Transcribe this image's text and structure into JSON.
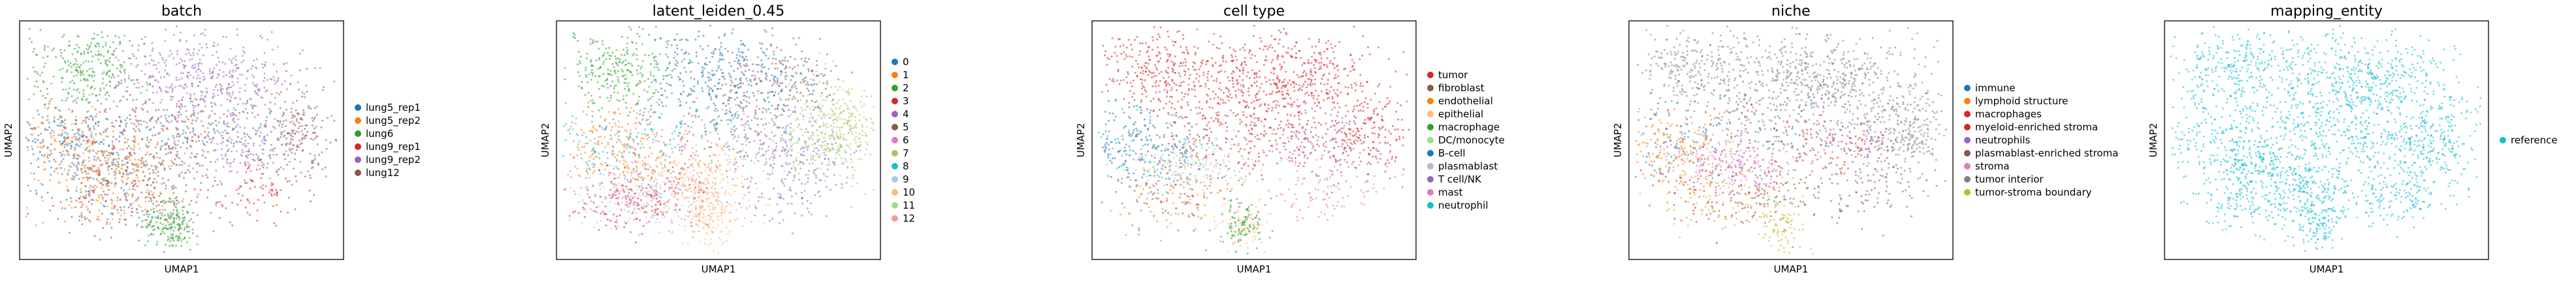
{
  "chart_data": [
    {
      "type": "scatter",
      "title": "batch",
      "xlabel": "UMAP1",
      "ylabel": "UMAP2",
      "legend_position": "right",
      "grid": false,
      "ticks": false,
      "series": [
        {
          "name": "lung5_rep1",
          "color": "#1f77b4"
        },
        {
          "name": "lung5_rep2",
          "color": "#ff7f0e"
        },
        {
          "name": "lung6",
          "color": "#2ca02c"
        },
        {
          "name": "lung9_rep1",
          "color": "#d62728"
        },
        {
          "name": "lung9_rep2",
          "color": "#9467bd"
        },
        {
          "name": "lung12",
          "color": "#8c564b"
        }
      ]
    },
    {
      "type": "scatter",
      "title": "latent_leiden_0.45",
      "xlabel": "UMAP1",
      "ylabel": "UMAP2",
      "legend_position": "right",
      "grid": false,
      "ticks": false,
      "series": [
        {
          "name": "0",
          "color": "#1f77b4"
        },
        {
          "name": "1",
          "color": "#ff7f0e"
        },
        {
          "name": "2",
          "color": "#2ca02c"
        },
        {
          "name": "3",
          "color": "#d62728"
        },
        {
          "name": "4",
          "color": "#9467bd"
        },
        {
          "name": "5",
          "color": "#8c564b"
        },
        {
          "name": "6",
          "color": "#e377c2"
        },
        {
          "name": "7",
          "color": "#b5bd61"
        },
        {
          "name": "8",
          "color": "#17becf"
        },
        {
          "name": "9",
          "color": "#aec7e8"
        },
        {
          "name": "10",
          "color": "#ffbb78"
        },
        {
          "name": "11",
          "color": "#98df8a"
        },
        {
          "name": "12",
          "color": "#ff9896"
        }
      ]
    },
    {
      "type": "scatter",
      "title": "cell type",
      "xlabel": "UMAP1",
      "ylabel": "UMAP2",
      "legend_position": "right",
      "grid": false,
      "ticks": false,
      "series": [
        {
          "name": "tumor",
          "color": "#d62728"
        },
        {
          "name": "fibroblast",
          "color": "#8c564b"
        },
        {
          "name": "endothelial",
          "color": "#ff7f0e"
        },
        {
          "name": "epithelial",
          "color": "#ffbb78"
        },
        {
          "name": "macrophage",
          "color": "#2ca02c"
        },
        {
          "name": "DC/monocyte",
          "color": "#98df8a"
        },
        {
          "name": "B-cell",
          "color": "#1f77b4"
        },
        {
          "name": "plasmablast",
          "color": "#c5b0d5"
        },
        {
          "name": "T cell/NK",
          "color": "#9467bd"
        },
        {
          "name": "mast",
          "color": "#e377c2"
        },
        {
          "name": "neutrophil",
          "color": "#17becf"
        }
      ]
    },
    {
      "type": "scatter",
      "title": "niche",
      "xlabel": "UMAP1",
      "ylabel": "UMAP2",
      "legend_position": "right",
      "grid": false,
      "ticks": false,
      "series": [
        {
          "name": "immune",
          "color": "#1f77b4"
        },
        {
          "name": "lymphoid structure",
          "color": "#ff7f0e"
        },
        {
          "name": "macrophages",
          "color": "#d62728"
        },
        {
          "name": "myeloid-enriched stroma",
          "color": "#d62728"
        },
        {
          "name": "neutrophils",
          "color": "#9467bd"
        },
        {
          "name": "plasmablast-enriched stroma",
          "color": "#8c564b"
        },
        {
          "name": "stroma",
          "color": "#e377c2"
        },
        {
          "name": "tumor interior",
          "color": "#7f7f7f"
        },
        {
          "name": "tumor-stroma boundary",
          "color": "#bcbd22"
        }
      ]
    },
    {
      "type": "scatter",
      "title": "mapping_entity",
      "xlabel": "UMAP1",
      "ylabel": "UMAP2",
      "legend_position": "right",
      "grid": false,
      "ticks": false,
      "series": [
        {
          "name": "reference",
          "color": "#17becf"
        }
      ]
    }
  ]
}
